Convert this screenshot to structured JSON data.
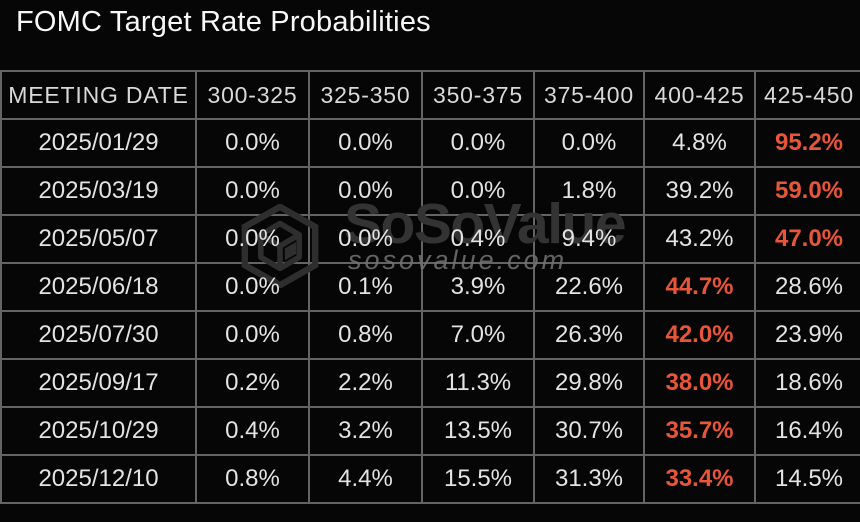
{
  "title": "FOMC Target Rate Probabilities",
  "watermark": {
    "brand": "SoSoValue",
    "domain_text": "sosovalue.com",
    "logo": "sosovalue-cube-logo"
  },
  "colors": {
    "background": "#060606",
    "grid_border": "#646464",
    "title_text": "#f7f7f7",
    "header_text": "#d9d9d9",
    "cell_text": "#e3e3e3",
    "highlight_text": "#e8563a",
    "watermark_brand": "#333333",
    "watermark_domain": "#747474"
  },
  "table": {
    "columns": [
      "MEETING DATE",
      "300-325",
      "325-350",
      "350-375",
      "375-400",
      "400-425",
      "425-450"
    ],
    "rows": [
      {
        "date": "2025/01/29",
        "values": [
          "0.0%",
          "0.0%",
          "0.0%",
          "0.0%",
          "4.8%",
          "95.2%"
        ],
        "highlight_index": 5
      },
      {
        "date": "2025/03/19",
        "values": [
          "0.0%",
          "0.0%",
          "0.0%",
          "1.8%",
          "39.2%",
          "59.0%"
        ],
        "highlight_index": 5
      },
      {
        "date": "2025/05/07",
        "values": [
          "0.0%",
          "0.0%",
          "0.4%",
          "9.4%",
          "43.2%",
          "47.0%"
        ],
        "highlight_index": 5
      },
      {
        "date": "2025/06/18",
        "values": [
          "0.0%",
          "0.1%",
          "3.9%",
          "22.6%",
          "44.7%",
          "28.6%"
        ],
        "highlight_index": 4
      },
      {
        "date": "2025/07/30",
        "values": [
          "0.0%",
          "0.8%",
          "7.0%",
          "26.3%",
          "42.0%",
          "23.9%"
        ],
        "highlight_index": 4
      },
      {
        "date": "2025/09/17",
        "values": [
          "0.2%",
          "2.2%",
          "11.3%",
          "29.8%",
          "38.0%",
          "18.6%"
        ],
        "highlight_index": 4
      },
      {
        "date": "2025/10/29",
        "values": [
          "0.4%",
          "3.2%",
          "13.5%",
          "30.7%",
          "35.7%",
          "16.4%"
        ],
        "highlight_index": 4
      },
      {
        "date": "2025/12/10",
        "values": [
          "0.8%",
          "4.4%",
          "15.5%",
          "31.3%",
          "33.4%",
          "14.5%"
        ],
        "highlight_index": 4
      }
    ]
  },
  "chart_data": {
    "type": "table",
    "title": "FOMC Target Rate Probabilities",
    "columns": [
      "MEETING DATE",
      "300-325",
      "325-350",
      "350-375",
      "375-400",
      "400-425",
      "425-450"
    ],
    "units": "percent",
    "rows": [
      [
        "2025/01/29",
        0.0,
        0.0,
        0.0,
        0.0,
        4.8,
        95.2
      ],
      [
        "2025/03/19",
        0.0,
        0.0,
        0.0,
        1.8,
        39.2,
        59.0
      ],
      [
        "2025/05/07",
        0.0,
        0.0,
        0.4,
        9.4,
        43.2,
        47.0
      ],
      [
        "2025/06/18",
        0.0,
        0.1,
        3.9,
        22.6,
        44.7,
        28.6
      ],
      [
        "2025/07/30",
        0.0,
        0.8,
        7.0,
        26.3,
        42.0,
        23.9
      ],
      [
        "2025/09/17",
        0.2,
        2.2,
        11.3,
        29.8,
        38.0,
        18.6
      ],
      [
        "2025/10/29",
        0.4,
        3.2,
        13.5,
        30.7,
        35.7,
        16.4
      ],
      [
        "2025/12/10",
        0.8,
        4.4,
        15.5,
        31.3,
        33.4,
        14.5
      ]
    ],
    "highlight_rule": "highest probability in each row shown in orange",
    "legend_position": "none",
    "grid": true
  }
}
